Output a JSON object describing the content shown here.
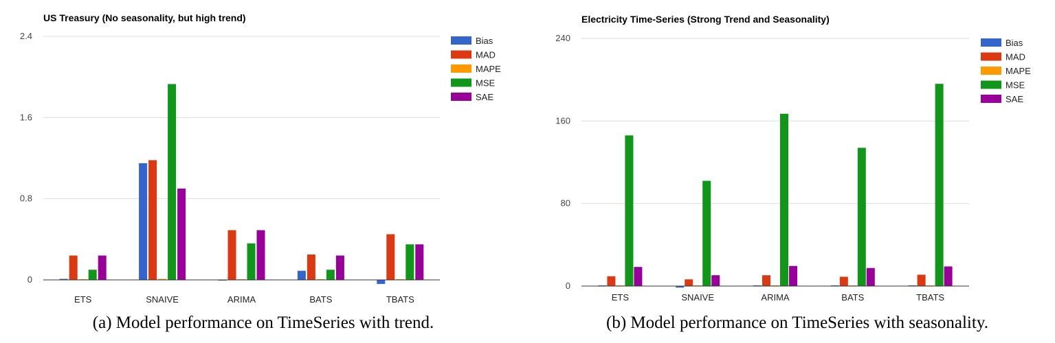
{
  "series_colors": {
    "Bias": "#3366cc",
    "MAD": "#dc3912",
    "MAPE": "#ff9900",
    "MSE": "#109618",
    "SAE": "#990099"
  },
  "captions": [
    "(a) Model performance on TimeSeries with trend.",
    "(b) Model performance on TimeSeries with seasonality."
  ],
  "chart_data": [
    {
      "type": "bar",
      "title": "US Treasury (No seasonality, but high trend)",
      "categories": [
        "ETS",
        "SNAIVE",
        "ARIMA",
        "BATS",
        "TBATS"
      ],
      "ylim": [
        0,
        2.4
      ],
      "yticks": [
        0,
        0.8,
        1.6,
        2.4
      ],
      "ytick_labels": [
        "0",
        "0.8",
        "1.6",
        "2.4"
      ],
      "grid": true,
      "legend_position": "right",
      "series": [
        {
          "name": "Bias",
          "values": [
            0.01,
            1.15,
            -0.005,
            0.09,
            -0.04
          ]
        },
        {
          "name": "MAD",
          "values": [
            0.24,
            1.18,
            0.49,
            0.25,
            0.45
          ]
        },
        {
          "name": "MAPE",
          "values": [
            0.003,
            0.01,
            0.003,
            0.003,
            0.003
          ]
        },
        {
          "name": "MSE",
          "values": [
            0.1,
            1.93,
            0.36,
            0.1,
            0.35
          ]
        },
        {
          "name": "SAE",
          "values": [
            0.24,
            0.9,
            0.49,
            0.24,
            0.35
          ]
        }
      ]
    },
    {
      "type": "bar",
      "title": "Electricity Time-Series (Strong Trend and Seasonality)",
      "categories": [
        "ETS",
        "SNAIVE",
        "ARIMA",
        "BATS",
        "TBATS"
      ],
      "ylim": [
        0,
        240
      ],
      "yticks": [
        0,
        80,
        160,
        240
      ],
      "ytick_labels": [
        "0",
        "80",
        "160",
        "240"
      ],
      "grid": true,
      "legend_position": "right",
      "series": [
        {
          "name": "Bias",
          "values": [
            0.3,
            -1.5,
            0.3,
            0.3,
            0.5
          ]
        },
        {
          "name": "MAD",
          "values": [
            9.5,
            6.5,
            10.5,
            9,
            11
          ]
        },
        {
          "name": "MAPE",
          "values": [
            0.2,
            0.2,
            0.2,
            0.2,
            0.2
          ]
        },
        {
          "name": "MSE",
          "values": [
            146,
            102,
            167,
            134,
            196
          ]
        },
        {
          "name": "SAE",
          "values": [
            18.5,
            10.5,
            19.5,
            17.5,
            19
          ]
        }
      ]
    }
  ]
}
